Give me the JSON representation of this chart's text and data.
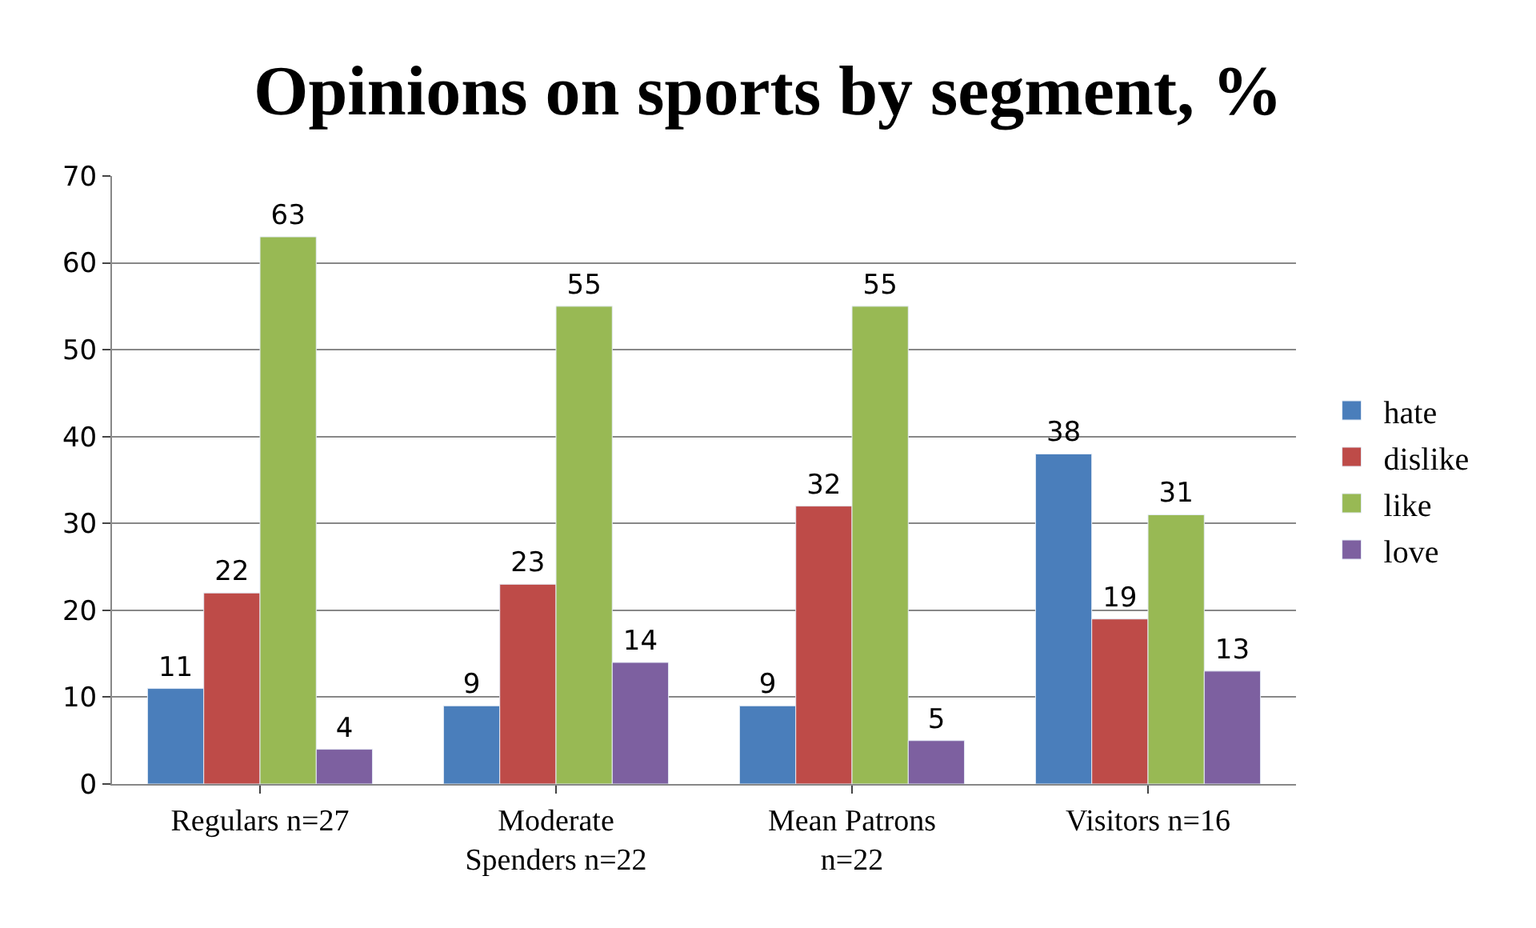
{
  "chart_data": {
    "type": "bar",
    "title": "Opinions on sports by segment, %",
    "categories": [
      "Regulars n=27",
      "Moderate Spenders n=22",
      "Mean Patrons n=22",
      "Visitors n=16"
    ],
    "series": [
      {
        "name": "hate",
        "color": "#4a7ebb",
        "values": [
          11,
          9,
          9,
          38
        ]
      },
      {
        "name": "dislike",
        "color": "#be4b48",
        "values": [
          22,
          23,
          32,
          19
        ]
      },
      {
        "name": "like",
        "color": "#98b954",
        "values": [
          63,
          55,
          55,
          31
        ]
      },
      {
        "name": "love",
        "color": "#7d60a0",
        "values": [
          4,
          14,
          5,
          13
        ]
      }
    ],
    "ylim": [
      0,
      70
    ],
    "yticks": [
      0,
      10,
      20,
      30,
      40,
      50,
      60,
      70
    ],
    "grid": "y",
    "legend": "right",
    "data_labels": true
  }
}
